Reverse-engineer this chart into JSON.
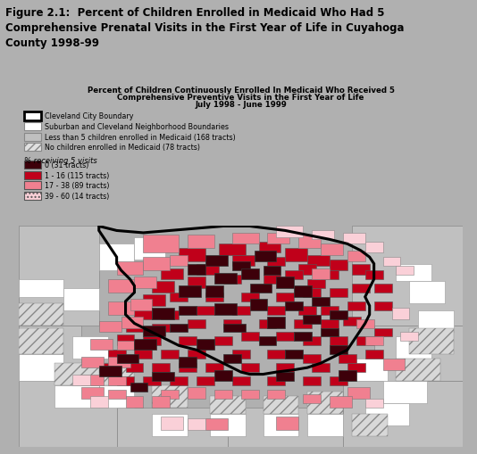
{
  "figure_title": "Figure 2.1:  Percent of Children Enrolled in Medicaid Who Had 5\nComprehensive Prenatal Visits in the First Year of Life in Cuyahoga\nCounty 1998-99",
  "figure_title_fontsize": 8.5,
  "header_bg_color": "#a8a8a8",
  "header_text_color": "#000000",
  "outer_bg_color": "#b0b0b0",
  "panel_bg": "#ffffff",
  "map_border_color": "#555555",
  "map_title_line1": "Percent of Children Continuously Enrolled In Medicaid Who Received 5",
  "map_title_line2": "Comprehensive Preventive Visits in the First Year of Life",
  "map_title_line3": "July 1998 - June 1999",
  "map_title_fontsize": 6.2,
  "legend_items": [
    {
      "label": "Cleveland City Boundary",
      "type": "border_box",
      "edgecolor": "#000000",
      "facecolor": "#ffffff",
      "linewidth": 2
    },
    {
      "label": "Suburban and Cleveland Neighborhood Boundaries",
      "type": "box",
      "edgecolor": "#888888",
      "facecolor": "#ffffff",
      "linewidth": 0.8
    },
    {
      "label": "Less than 5 children enrolled in Medicaid (168 tracts)",
      "type": "fill_box",
      "edgecolor": "#888888",
      "facecolor": "#c0c0c0",
      "linewidth": 0.8
    },
    {
      "label": "No children enrolled in Medicaid (78 tracts)",
      "type": "hatch_box",
      "edgecolor": "#888888",
      "facecolor": "#e0e0e0",
      "hatch": "////",
      "linewidth": 0.8
    }
  ],
  "pct_label": "% receiving 5 visits",
  "pct_label_fontsize": 6,
  "pct_items": [
    {
      "label": "0 (31 tracts)",
      "facecolor": "#3d000a",
      "edgecolor": "#555555"
    },
    {
      "label": "1 - 16 (115 tracts)",
      "facecolor": "#c0001a",
      "edgecolor": "#555555"
    },
    {
      "label": "17 - 38 (89 tracts)",
      "facecolor": "#f08090",
      "edgecolor": "#555555"
    },
    {
      "label": "39 - 60 (14 tracts)",
      "facecolor": "#fad0d8",
      "edgecolor": "#555555",
      "hatch": "...."
    }
  ],
  "legend_fontsize": 5.8,
  "map_outer_bg": "#c8c8c8",
  "colors": {
    "dark_red": "#3d000a",
    "medium_red": "#c0001a",
    "light_red": "#f08090",
    "pink": "#fad0d8",
    "gray": "#c0c0c0",
    "white": "#ffffff",
    "lt_gray": "#d8d8d8"
  }
}
